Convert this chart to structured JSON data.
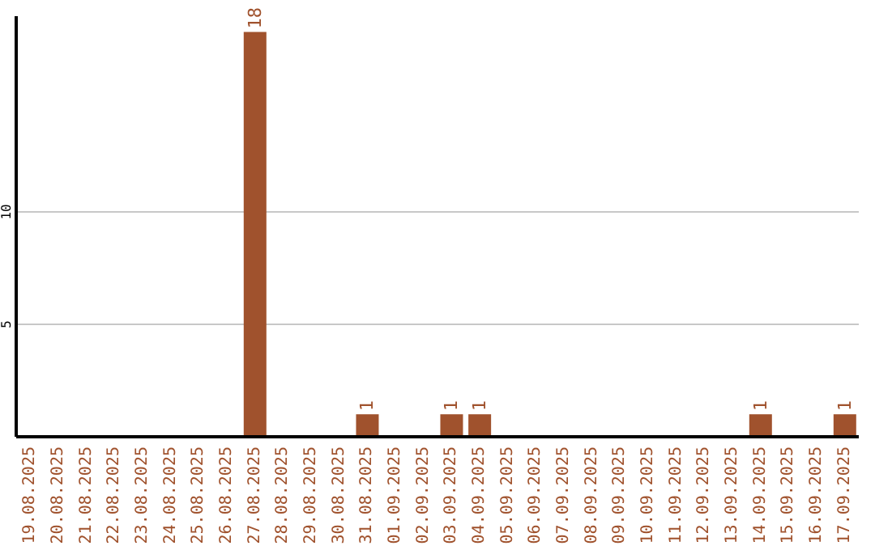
{
  "chart_data": {
    "type": "bar",
    "categories": [
      "19.08.2025",
      "20.08.2025",
      "21.08.2025",
      "22.08.2025",
      "23.08.2025",
      "24.08.2025",
      "25.08.2025",
      "26.08.2025",
      "27.08.2025",
      "28.08.2025",
      "29.08.2025",
      "30.08.2025",
      "31.08.2025",
      "01.09.2025",
      "02.09.2025",
      "03.09.2025",
      "04.09.2025",
      "05.09.2025",
      "06.09.2025",
      "07.09.2025",
      "08.09.2025",
      "09.09.2025",
      "10.09.2025",
      "11.09.2025",
      "12.09.2025",
      "13.09.2025",
      "14.09.2025",
      "15.09.2025",
      "16.09.2025",
      "17.09.2025"
    ],
    "values": [
      0,
      0,
      0,
      0,
      0,
      0,
      0,
      0,
      18,
      0,
      0,
      0,
      1,
      0,
      0,
      1,
      1,
      0,
      0,
      0,
      0,
      0,
      0,
      0,
      0,
      0,
      1,
      0,
      0,
      1
    ],
    "value_labels": [
      null,
      null,
      null,
      null,
      null,
      null,
      null,
      null,
      "18",
      null,
      null,
      null,
      "1",
      null,
      null,
      "1",
      "1",
      null,
      null,
      null,
      null,
      null,
      null,
      null,
      null,
      null,
      "1",
      null,
      null,
      "1"
    ],
    "color": "#a0522d",
    "ylim": [
      0,
      18.7
    ],
    "yticks": [
      5,
      10
    ],
    "grid": "y"
  }
}
